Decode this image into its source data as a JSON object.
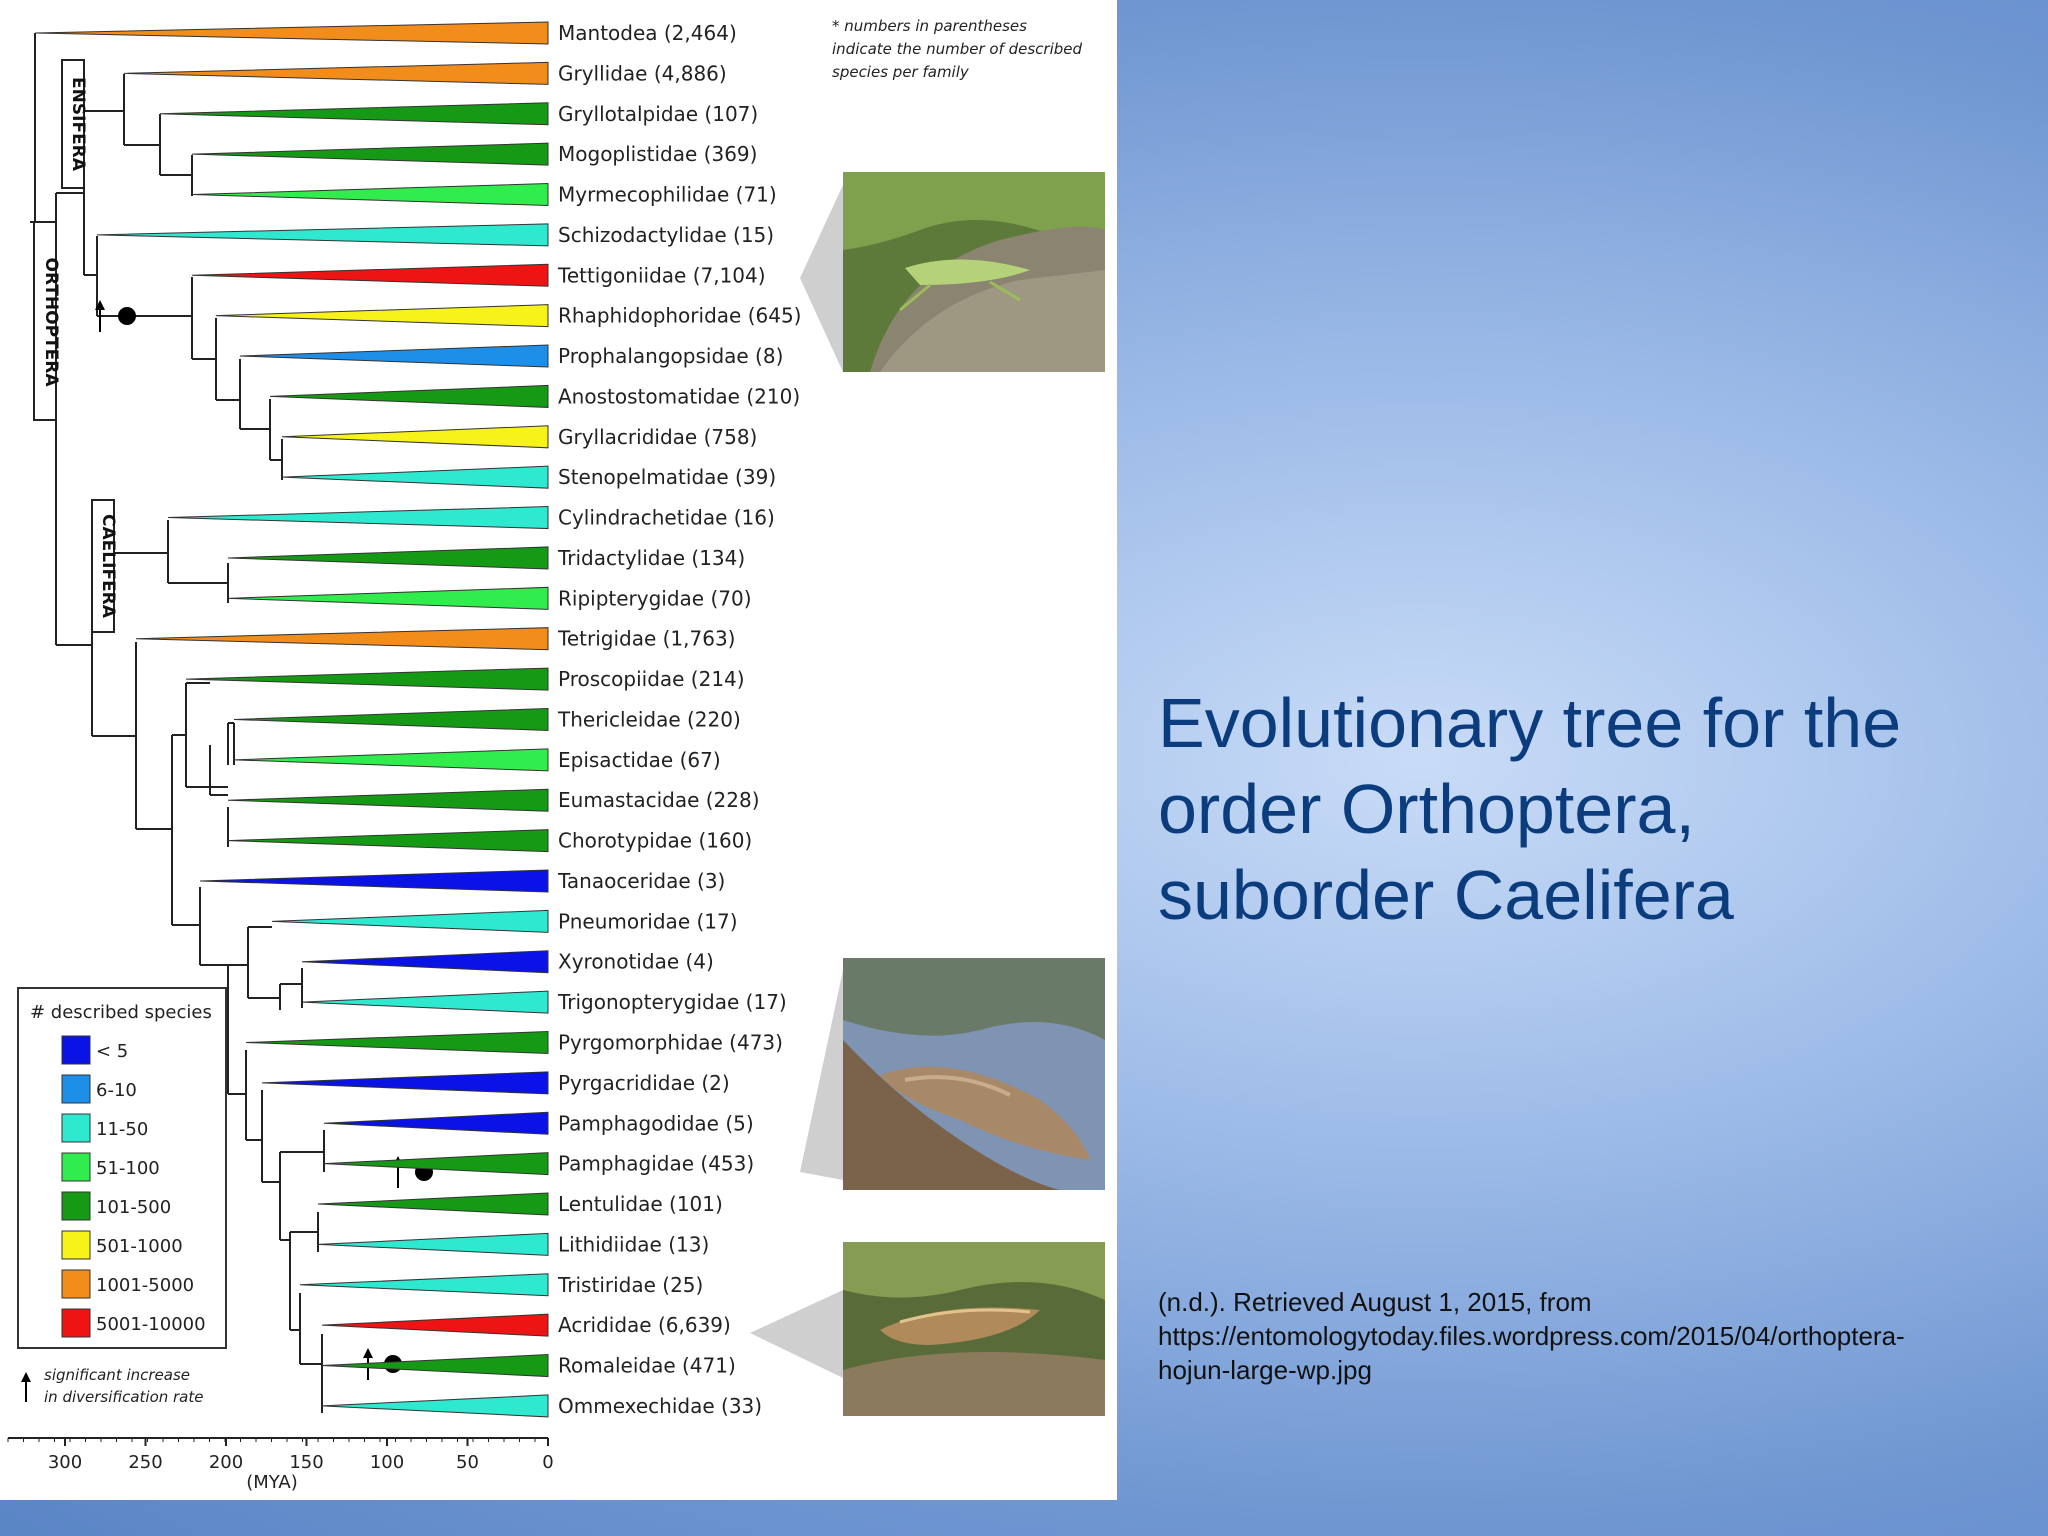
{
  "slide": {
    "title_lines": [
      "Evolutionary tree for the",
      "order Orthoptera,",
      "suborder Caelifera"
    ],
    "citation_lines": [
      "(n.d.). Retrieved August 1, 2015, from",
      "https://entomologytoday.files.wordpress.com/2015/04/orthoptera-",
      "hojun-large-wp.jpg"
    ]
  },
  "figure": {
    "note_lines": [
      "* numbers in parentheses",
      "indicate the number of described",
      "species per family"
    ],
    "group_labels": {
      "orthoptera": "ORTHOPTERA",
      "ensifera": "ENSIFERA",
      "caelifera": "CAELIFERA"
    },
    "axis": {
      "unit": "(MYA)",
      "ticks": [
        "300",
        "250",
        "200",
        "150",
        "100",
        "50",
        "0"
      ]
    },
    "legend": {
      "title": "# described species",
      "bins": [
        {
          "label": "< 5",
          "color": "#0a12e6"
        },
        {
          "label": "6-10",
          "color": "#1e8fe8"
        },
        {
          "label": "11-50",
          "color": "#2ee8d0"
        },
        {
          "label": "51-100",
          "color": "#30ec4c"
        },
        {
          "label": "101-500",
          "color": "#169a16"
        },
        {
          "label": "501-1000",
          "color": "#f6f21a"
        },
        {
          "label": "1001-5000",
          "color": "#f28c1a"
        },
        {
          "label": "5001-10000",
          "color": "#ee1414"
        }
      ],
      "arrow_note_lines": [
        "significant increase",
        "in diversification rate"
      ]
    },
    "families": [
      {
        "name": "Mantodea",
        "count": "2,464",
        "label": "Mantodea (2,464)",
        "color": "#f28c1a",
        "tip_x": 35
      },
      {
        "name": "Gryllidae",
        "count": "4,886",
        "label": "Gryllidae (4,886)",
        "color": "#f28c1a",
        "tip_x": 124
      },
      {
        "name": "Gryllotalpidae",
        "count": "107",
        "label": "Gryllotalpidae (107)",
        "color": "#169a16",
        "tip_x": 160
      },
      {
        "name": "Mogoplistidae",
        "count": "369",
        "label": "Mogoplistidae (369)",
        "color": "#169a16",
        "tip_x": 192
      },
      {
        "name": "Myrmecophilidae",
        "count": "71",
        "label": "Myrmecophilidae (71)",
        "color": "#30ec4c",
        "tip_x": 192
      },
      {
        "name": "Schizodactylidae",
        "count": "15",
        "label": "Schizodactylidae (15)",
        "color": "#2ee8d0",
        "tip_x": 97
      },
      {
        "name": "Tettigoniidae",
        "count": "7,104",
        "label": "Tettigoniidae (7,104)",
        "color": "#ee1414",
        "tip_x": 192
      },
      {
        "name": "Rhaphidophoridae",
        "count": "645",
        "label": "Rhaphidophoridae (645)",
        "color": "#f6f21a",
        "tip_x": 216
      },
      {
        "name": "Prophalangopsidae",
        "count": "8",
        "label": "Prophalangopsidae (8)",
        "color": "#1e8fe8",
        "tip_x": 240
      },
      {
        "name": "Anostostomatidae",
        "count": "210",
        "label": "Anostostomatidae (210)",
        "color": "#169a16",
        "tip_x": 270
      },
      {
        "name": "Gryllacrididae",
        "count": "758",
        "label": "Gryllacrididae (758)",
        "color": "#f6f21a",
        "tip_x": 282
      },
      {
        "name": "Stenopelmatidae",
        "count": "39",
        "label": "Stenopelmatidae (39)",
        "color": "#2ee8d0",
        "tip_x": 282
      },
      {
        "name": "Cylindrachetidae",
        "count": "16",
        "label": "Cylindrachetidae (16)",
        "color": "#2ee8d0",
        "tip_x": 168
      },
      {
        "name": "Tridactylidae",
        "count": "134",
        "label": "Tridactylidae (134)",
        "color": "#169a16",
        "tip_x": 228
      },
      {
        "name": "Ripipterygidae",
        "count": "70",
        "label": "Ripipterygidae (70)",
        "color": "#30ec4c",
        "tip_x": 228
      },
      {
        "name": "Tetrigidae",
        "count": "1,763",
        "label": "Tetrigidae (1,763)",
        "color": "#f28c1a",
        "tip_x": 136
      },
      {
        "name": "Proscopiidae",
        "count": "214",
        "label": "Proscopiidae (214)",
        "color": "#169a16",
        "tip_x": 186
      },
      {
        "name": "Thericleidae",
        "count": "220",
        "label": "Thericleidae (220)",
        "color": "#169a16",
        "tip_x": 234
      },
      {
        "name": "Episactidae",
        "count": "67",
        "label": "Episactidae (67)",
        "color": "#30ec4c",
        "tip_x": 234
      },
      {
        "name": "Eumastacidae",
        "count": "228",
        "label": "Eumastacidae (228)",
        "color": "#169a16",
        "tip_x": 228
      },
      {
        "name": "Chorotypidae",
        "count": "160",
        "label": "Chorotypidae (160)",
        "color": "#169a16",
        "tip_x": 228
      },
      {
        "name": "Tanaoceridae",
        "count": "3",
        "label": "Tanaoceridae (3)",
        "color": "#0a12e6",
        "tip_x": 200
      },
      {
        "name": "Pneumoridae",
        "count": "17",
        "label": "Pneumoridae (17)",
        "color": "#2ee8d0",
        "tip_x": 272
      },
      {
        "name": "Xyronotidae",
        "count": "4",
        "label": "Xyronotidae (4)",
        "color": "#0a12e6",
        "tip_x": 302
      },
      {
        "name": "Trigonopterygidae",
        "count": "17",
        "label": "Trigonopterygidae (17)",
        "color": "#2ee8d0",
        "tip_x": 302
      },
      {
        "name": "Pyrgomorphidae",
        "count": "473",
        "label": "Pyrgomorphidae (473)",
        "color": "#169a16",
        "tip_x": 246
      },
      {
        "name": "Pyrgacrididae",
        "count": "2",
        "label": "Pyrgacrididae (2)",
        "color": "#0a12e6",
        "tip_x": 262
      },
      {
        "name": "Pamphagodidae",
        "count": "5",
        "label": "Pamphagodidae (5)",
        "color": "#0a12e6",
        "tip_x": 324
      },
      {
        "name": "Pamphagidae",
        "count": "453",
        "label": "Pamphagidae (453)",
        "color": "#169a16",
        "tip_x": 324
      },
      {
        "name": "Lentulidae",
        "count": "101",
        "label": "Lentulidae (101)",
        "color": "#169a16",
        "tip_x": 318
      },
      {
        "name": "Lithidiidae",
        "count": "13",
        "label": "Lithidiidae (13)",
        "color": "#2ee8d0",
        "tip_x": 318
      },
      {
        "name": "Tristiridae",
        "count": "25",
        "label": "Tristiridae (25)",
        "color": "#2ee8d0",
        "tip_x": 300
      },
      {
        "name": "Acrididae",
        "count": "6,639",
        "label": "Acrididae (6,639)",
        "color": "#ee1414",
        "tip_x": 322
      },
      {
        "name": "Romaleidae",
        "count": "471",
        "label": "Romaleidae (471)",
        "color": "#169a16",
        "tip_x": 322
      },
      {
        "name": "Ommexechidae",
        "count": "33",
        "label": "Ommexechidae (33)",
        "color": "#2ee8d0",
        "tip_x": 322
      }
    ]
  }
}
